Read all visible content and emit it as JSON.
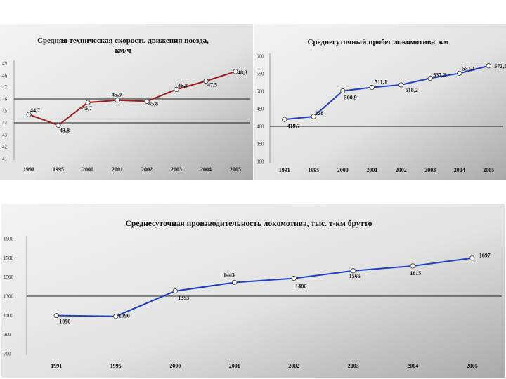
{
  "chart_data": [
    {
      "type": "line",
      "title": "Средняя техническая скорость движения поезда, км/ч",
      "title_lines": [
        "Средняя техническая скорость движения поезда,",
        "км/ч"
      ],
      "categories": [
        "1991",
        "1995",
        "2000",
        "2001",
        "2002",
        "2003",
        "2004",
        "2005"
      ],
      "values": [
        44.7,
        43.8,
        45.7,
        45.9,
        45.8,
        46.8,
        47.5,
        48.3
      ],
      "value_labels": [
        "44,7",
        "43,8",
        "45,7",
        "45,9",
        "45,8",
        "46,8",
        "47,5",
        "48,3"
      ],
      "yticks": [
        "41",
        "42",
        "43",
        "44",
        "45",
        "46",
        "47",
        "48",
        "49"
      ],
      "ylim": [
        41,
        49
      ],
      "line_color": "#9b1c1c",
      "grid": "horizontal"
    },
    {
      "type": "line",
      "title": "Среднесуточный пробег локомотива, км",
      "title_lines": [
        "Среднесуточный пробег локомотива, км"
      ],
      "categories": [
        "1991",
        "1995",
        "2000",
        "2001",
        "2002",
        "2003",
        "2004",
        "2005"
      ],
      "values": [
        419.7,
        428,
        500.9,
        511.1,
        518.2,
        537.2,
        551.1,
        572.5
      ],
      "value_labels": [
        "419,7",
        "428",
        "500,9",
        "511,1",
        "518,2",
        "537,2",
        "551,1",
        "572,5"
      ],
      "yticks": [
        "300",
        "350",
        "400",
        "450",
        "500",
        "550",
        "600"
      ],
      "ylim": [
        300,
        600
      ],
      "line_color": "#1e3fbf",
      "grid": "horizontal"
    },
    {
      "type": "line",
      "title": "Среднесуточная производительность локомотива, тыс. т-км брутто",
      "title_lines": [
        "Среднесуточная производительность локомотива, тыс. т-км брутто"
      ],
      "categories": [
        "1991",
        "1995",
        "2000",
        "2001",
        "2002",
        "2003",
        "2004",
        "2005"
      ],
      "values": [
        1098,
        1090,
        1353,
        1443,
        1486,
        1565,
        1615,
        1697
      ],
      "value_labels": [
        "1098",
        "1090",
        "1353",
        "1443",
        "1486",
        "1565",
        "1615",
        "1697"
      ],
      "yticks": [
        "700",
        "900",
        "1100",
        "1300",
        "1500",
        "1700",
        "1900"
      ],
      "ylim": [
        700,
        1900
      ],
      "line_color": "#1e3fbf",
      "grid": "horizontal"
    }
  ]
}
